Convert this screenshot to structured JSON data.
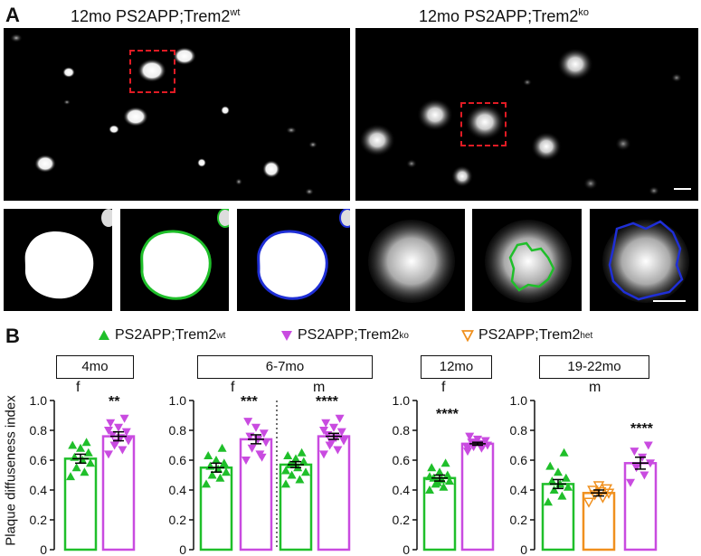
{
  "panels": {
    "a": {
      "letter": "A",
      "wt_title_main": "12mo PS2APP;Trem2",
      "wt_title_sup": "wt",
      "ko_title_main": "12mo PS2APP;Trem2",
      "ko_title_sup": "ko"
    },
    "b": {
      "letter": "B",
      "legend": [
        {
          "marker": "filled-triangle-up",
          "color": "#1fbf2a",
          "label_main": "PS2APP;Trem2",
          "label_sup": "wt"
        },
        {
          "marker": "filled-triangle-down",
          "color": "#c94be0",
          "label_main": "PS2APP;Trem2",
          "label_sup": "ko"
        },
        {
          "marker": "open-triangle-down",
          "color": "#f0901e",
          "label_main": "PS2APP;Trem2",
          "label_sup": "het"
        }
      ],
      "ylabel": "Plaque diffuseness index",
      "yticks": [
        "0",
        "0.2",
        "0.4",
        "0.6",
        "0.8",
        "1.0"
      ]
    }
  },
  "colors": {
    "wt": "#1fbf2a",
    "ko": "#c94be0",
    "het": "#f0901e",
    "roi": "#e01b24",
    "outline_blue": "#1f2fd6",
    "axis": "#111111"
  },
  "chart_data": [
    {
      "type": "bar",
      "title": "4mo",
      "groups": [
        {
          "sex": "f",
          "categories": [
            "wt",
            "ko"
          ],
          "values": [
            0.61,
            0.76
          ],
          "sem": [
            0.03,
            0.03
          ],
          "significance": [
            "",
            "**"
          ]
        }
      ],
      "points": {
        "wt": [
          0.49,
          0.52,
          0.55,
          0.58,
          0.6,
          0.62,
          0.65,
          0.68,
          0.7,
          0.72
        ],
        "ko": [
          0.64,
          0.67,
          0.7,
          0.73,
          0.75,
          0.77,
          0.79,
          0.82,
          0.85,
          0.88,
          0.72,
          0.8
        ]
      },
      "ylim": [
        0,
        1.0
      ]
    },
    {
      "type": "bar",
      "title": "6-7mo",
      "groups": [
        {
          "sex": "f",
          "categories": [
            "wt",
            "ko"
          ],
          "values": [
            0.55,
            0.74
          ],
          "sem": [
            0.03,
            0.03
          ],
          "significance": [
            "",
            "***"
          ]
        },
        {
          "sex": "m",
          "categories": [
            "wt",
            "ko"
          ],
          "values": [
            0.57,
            0.76
          ],
          "sem": [
            0.02,
            0.02
          ],
          "significance": [
            "",
            "****"
          ]
        }
      ],
      "points": {
        "f_wt": [
          0.44,
          0.48,
          0.5,
          0.52,
          0.54,
          0.56,
          0.58,
          0.6,
          0.63,
          0.68
        ],
        "f_ko": [
          0.6,
          0.64,
          0.68,
          0.72,
          0.74,
          0.76,
          0.78,
          0.82,
          0.86,
          0.62
        ],
        "m_wt": [
          0.44,
          0.47,
          0.5,
          0.52,
          0.55,
          0.57,
          0.59,
          0.61,
          0.63,
          0.65,
          0.58,
          0.53
        ],
        "m_ko": [
          0.64,
          0.67,
          0.7,
          0.73,
          0.75,
          0.77,
          0.79,
          0.82,
          0.85,
          0.88,
          0.72,
          0.8
        ]
      },
      "ylim": [
        0,
        1.0
      ]
    },
    {
      "type": "bar",
      "title": "12mo",
      "groups": [
        {
          "sex": "f",
          "categories": [
            "wt",
            "ko"
          ],
          "values": [
            0.48,
            0.71
          ],
          "sem": [
            0.02,
            0.01
          ],
          "significance": [
            "",
            "****"
          ]
        }
      ],
      "points": {
        "wt": [
          0.4,
          0.42,
          0.44,
          0.46,
          0.47,
          0.48,
          0.5,
          0.52,
          0.55,
          0.58,
          0.45,
          0.49
        ],
        "ko": [
          0.66,
          0.68,
          0.69,
          0.7,
          0.71,
          0.72,
          0.73,
          0.74,
          0.76,
          0.7,
          0.72,
          0.68
        ]
      },
      "ylim": [
        0,
        1.0
      ]
    },
    {
      "type": "bar",
      "title": "19-22mo",
      "groups": [
        {
          "sex": "m",
          "categories": [
            "wt",
            "het",
            "ko"
          ],
          "values": [
            0.44,
            0.38,
            0.58
          ],
          "sem": [
            0.03,
            0.02,
            0.04
          ],
          "significance": [
            "",
            "",
            "****"
          ]
        }
      ],
      "points": {
        "wt": [
          0.32,
          0.36,
          0.4,
          0.42,
          0.44,
          0.46,
          0.48,
          0.52,
          0.56,
          0.65
        ],
        "het": [
          0.32,
          0.35,
          0.37,
          0.38,
          0.39,
          0.4,
          0.41,
          0.43
        ],
        "ko": [
          0.45,
          0.5,
          0.55,
          0.58,
          0.62,
          0.66,
          0.7
        ]
      },
      "ylim": [
        0,
        1.0
      ]
    }
  ]
}
